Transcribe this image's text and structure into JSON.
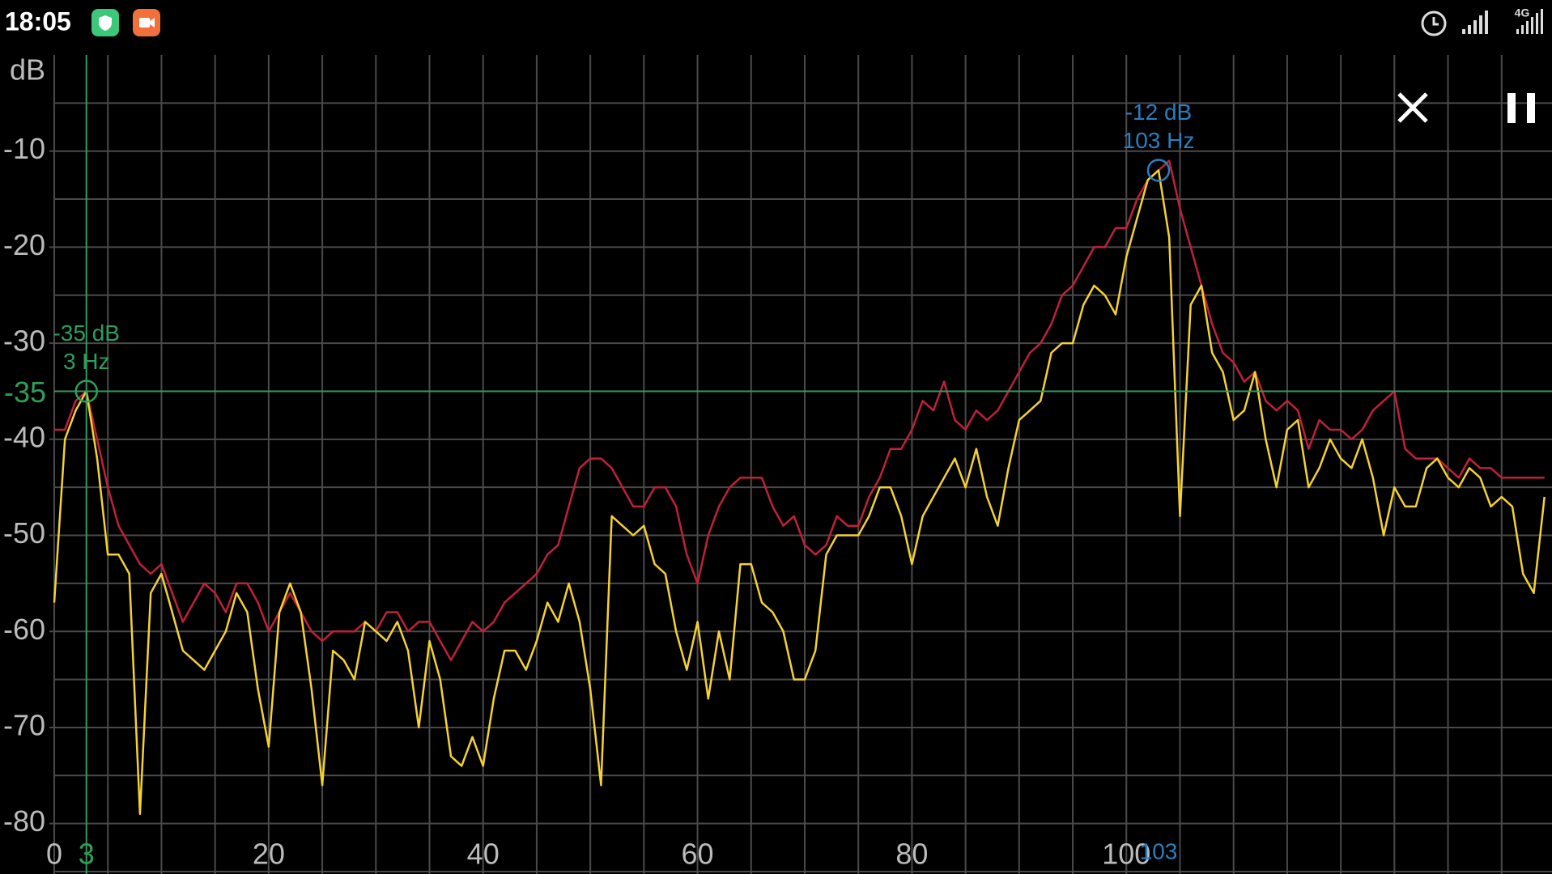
{
  "status_bar": {
    "time": "18:05",
    "network": "4G"
  },
  "chart_data": {
    "type": "line",
    "y_axis_label": "dB",
    "x": [
      0,
      1,
      2,
      3,
      4,
      5,
      6,
      7,
      8,
      9,
      10,
      11,
      12,
      13,
      14,
      15,
      16,
      17,
      18,
      19,
      20,
      21,
      22,
      23,
      24,
      25,
      26,
      27,
      28,
      29,
      30,
      31,
      32,
      33,
      34,
      35,
      36,
      37,
      38,
      39,
      40,
      41,
      42,
      43,
      44,
      45,
      46,
      47,
      48,
      49,
      50,
      51,
      52,
      53,
      54,
      55,
      56,
      57,
      58,
      59,
      60,
      61,
      62,
      63,
      64,
      65,
      66,
      67,
      68,
      69,
      70,
      71,
      72,
      73,
      74,
      75,
      76,
      77,
      78,
      79,
      80,
      81,
      82,
      83,
      84,
      85,
      86,
      87,
      88,
      89,
      90,
      91,
      92,
      93,
      94,
      95,
      96,
      97,
      98,
      99,
      100,
      101,
      102,
      103,
      104,
      105,
      106,
      107,
      108,
      109,
      110,
      111,
      112,
      113,
      114,
      115,
      116,
      117,
      118,
      119,
      120,
      121,
      122,
      123,
      124,
      125,
      126,
      127,
      128,
      129,
      130,
      131,
      132,
      133,
      134,
      135,
      136,
      137,
      138,
      139
    ],
    "series": [
      {
        "color": "#c0213a",
        "values": [
          -39,
          -39,
          -36,
          -35,
          -40,
          -45,
          -49,
          -51,
          -53,
          -54,
          -53,
          -56,
          -59,
          -57,
          -55,
          -56,
          -58,
          -55,
          -55,
          -57,
          -60,
          -58,
          -56,
          -58,
          -60,
          -61,
          -60,
          -60,
          -60,
          -59,
          -60,
          -58,
          -58,
          -60,
          -59,
          -59,
          -61,
          -63,
          -61,
          -59,
          -60,
          -59,
          -57,
          -56,
          -55,
          -54,
          -52,
          -51,
          -47,
          -43,
          -42,
          -42,
          -43,
          -45,
          -47,
          -47,
          -45,
          -45,
          -47,
          -52,
          -55,
          -50,
          -47,
          -45,
          -44,
          -44,
          -44,
          -47,
          -49,
          -48,
          -51,
          -52,
          -51,
          -48,
          -49,
          -49,
          -46,
          -44,
          -41,
          -41,
          -39,
          -36,
          -37,
          -34,
          -38,
          -39,
          -37,
          -38,
          -37,
          -35,
          -33,
          -31,
          -30,
          -28,
          -25,
          -24,
          -22,
          -20,
          -20,
          -18,
          -18,
          -15,
          -13,
          -12,
          -11,
          -16,
          -20,
          -24,
          -28,
          -31,
          -32,
          -34,
          -33,
          -36,
          -37,
          -36,
          -37,
          -41,
          -38,
          -39,
          -39,
          -40,
          -39,
          -37,
          -36,
          -35,
          -41,
          -42,
          -42,
          -42,
          -43,
          -44,
          -42,
          -43,
          -43,
          -44,
          -44,
          -44,
          -44,
          -44
        ]
      },
      {
        "color": "#f5d230",
        "values": [
          -57,
          -40,
          -37,
          -35,
          -42,
          -52,
          -52,
          -54,
          -79,
          -56,
          -54,
          -58,
          -62,
          -63,
          -64,
          -62,
          -60,
          -56,
          -58,
          -66,
          -72,
          -58,
          -55,
          -58,
          -66,
          -76,
          -62,
          -63,
          -65,
          -59,
          -60,
          -61,
          -59,
          -62,
          -70,
          -61,
          -65,
          -73,
          -74,
          -71,
          -74,
          -67,
          -62,
          -62,
          -64,
          -61,
          -57,
          -59,
          -55,
          -59,
          -66,
          -76,
          -48,
          -49,
          -50,
          -49,
          -53,
          -54,
          -60,
          -64,
          -59,
          -67,
          -60,
          -65,
          -53,
          -53,
          -57,
          -58,
          -60,
          -65,
          -65,
          -62,
          -52,
          -50,
          -50,
          -50,
          -48,
          -45,
          -45,
          -48,
          -53,
          -48,
          -46,
          -44,
          -42,
          -45,
          -41,
          -46,
          -49,
          -43,
          -38,
          -37,
          -36,
          -31,
          -30,
          -30,
          -26,
          -24,
          -25,
          -27,
          -21,
          -17,
          -13,
          -12,
          -19,
          -48,
          -26,
          -24,
          -31,
          -33,
          -38,
          -37,
          -33,
          -40,
          -45,
          -39,
          -38,
          -45,
          -43,
          -40,
          -42,
          -43,
          -40,
          -44,
          -50,
          -45,
          -47,
          -47,
          -43,
          -42,
          -44,
          -45,
          -43,
          -44,
          -47,
          -46,
          -47,
          -54,
          -56,
          -46
        ]
      }
    ],
    "xlim": [
      0,
      139.7
    ],
    "ylim": [
      -85,
      0
    ],
    "xticks": [
      0,
      20,
      40,
      60,
      80,
      100
    ],
    "yticks": [
      -10,
      -20,
      -30,
      -40,
      -50,
      -60,
      -70,
      -80
    ],
    "x_gridlines": [
      0,
      5,
      10,
      15,
      20,
      25,
      30,
      35,
      40,
      45,
      50,
      55,
      60,
      65,
      70,
      75,
      80,
      85,
      90,
      95,
      100,
      105,
      110,
      115,
      120,
      125,
      130,
      135
    ],
    "y_gridlines": [
      -5,
      -10,
      -15,
      -20,
      -25,
      -30,
      -35,
      -40,
      -45,
      -50,
      -55,
      -60,
      -65,
      -70,
      -75,
      -80,
      -85
    ],
    "grid": true,
    "markers": [
      {
        "x": 3,
        "y": -35,
        "label_y": "-35 dB",
        "label_x": "3 Hz",
        "color": "#2e9e5b",
        "crosshair": true
      },
      {
        "x": 103,
        "y": -12,
        "label_y": "-12 dB",
        "label_x": "103 Hz",
        "color": "#2a7fc0",
        "crosshair": false
      }
    ]
  }
}
